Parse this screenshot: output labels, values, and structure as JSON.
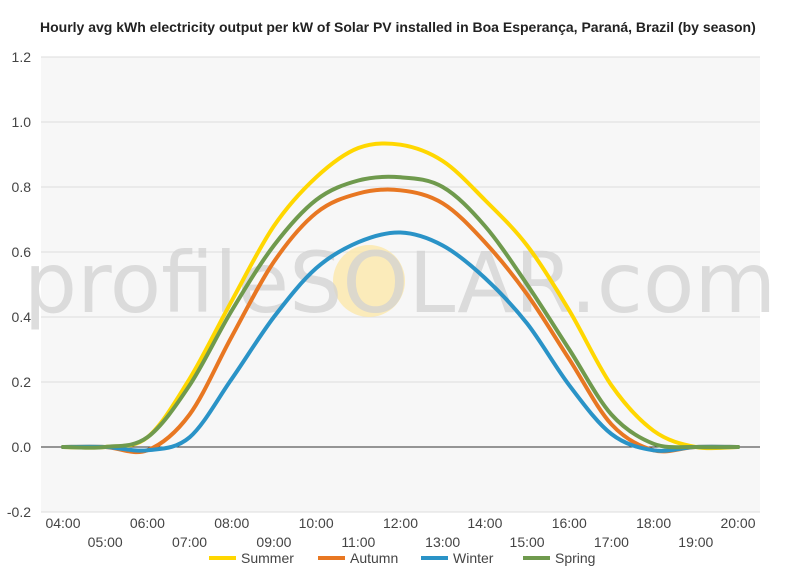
{
  "chart_data": {
    "type": "line",
    "title": "Hourly avg kWh electricity output per kW of Solar PV installed in Boa Esperança, Paraná, Brazil (by season)",
    "xlabel": "",
    "ylabel": "",
    "x": [
      "04:00",
      "05:00",
      "06:00",
      "07:00",
      "08:00",
      "09:00",
      "10:00",
      "11:00",
      "12:00",
      "13:00",
      "14:00",
      "15:00",
      "16:00",
      "17:00",
      "18:00",
      "19:00",
      "20:00"
    ],
    "ylim": [
      -0.2,
      1.2
    ],
    "yticks": [
      "-0.2",
      "0.0",
      "0.2",
      "0.4",
      "0.6",
      "0.8",
      "1.0",
      "1.2"
    ],
    "grid": true,
    "legend_position": "bottom",
    "watermark": "profileSOLAR.com",
    "series": [
      {
        "name": "Summer",
        "color": "#ffd700",
        "values": [
          0.0,
          0.0,
          0.03,
          0.21,
          0.45,
          0.68,
          0.83,
          0.92,
          0.93,
          0.88,
          0.76,
          0.62,
          0.42,
          0.19,
          0.05,
          0.0,
          0.0
        ]
      },
      {
        "name": "Autumn",
        "color": "#e87722",
        "values": [
          0.0,
          0.0,
          -0.01,
          0.1,
          0.34,
          0.57,
          0.72,
          0.78,
          0.79,
          0.75,
          0.63,
          0.47,
          0.27,
          0.07,
          -0.01,
          0.0,
          0.0
        ]
      },
      {
        "name": "Winter",
        "color": "#2a93c7",
        "values": [
          0.0,
          0.0,
          -0.01,
          0.03,
          0.21,
          0.4,
          0.55,
          0.63,
          0.66,
          0.62,
          0.52,
          0.38,
          0.19,
          0.04,
          -0.01,
          0.0,
          0.0
        ]
      },
      {
        "name": "Spring",
        "color": "#6f9a4d",
        "values": [
          0.0,
          0.0,
          0.03,
          0.19,
          0.42,
          0.62,
          0.76,
          0.82,
          0.83,
          0.8,
          0.68,
          0.5,
          0.3,
          0.1,
          0.01,
          0.0,
          0.0
        ]
      }
    ]
  }
}
